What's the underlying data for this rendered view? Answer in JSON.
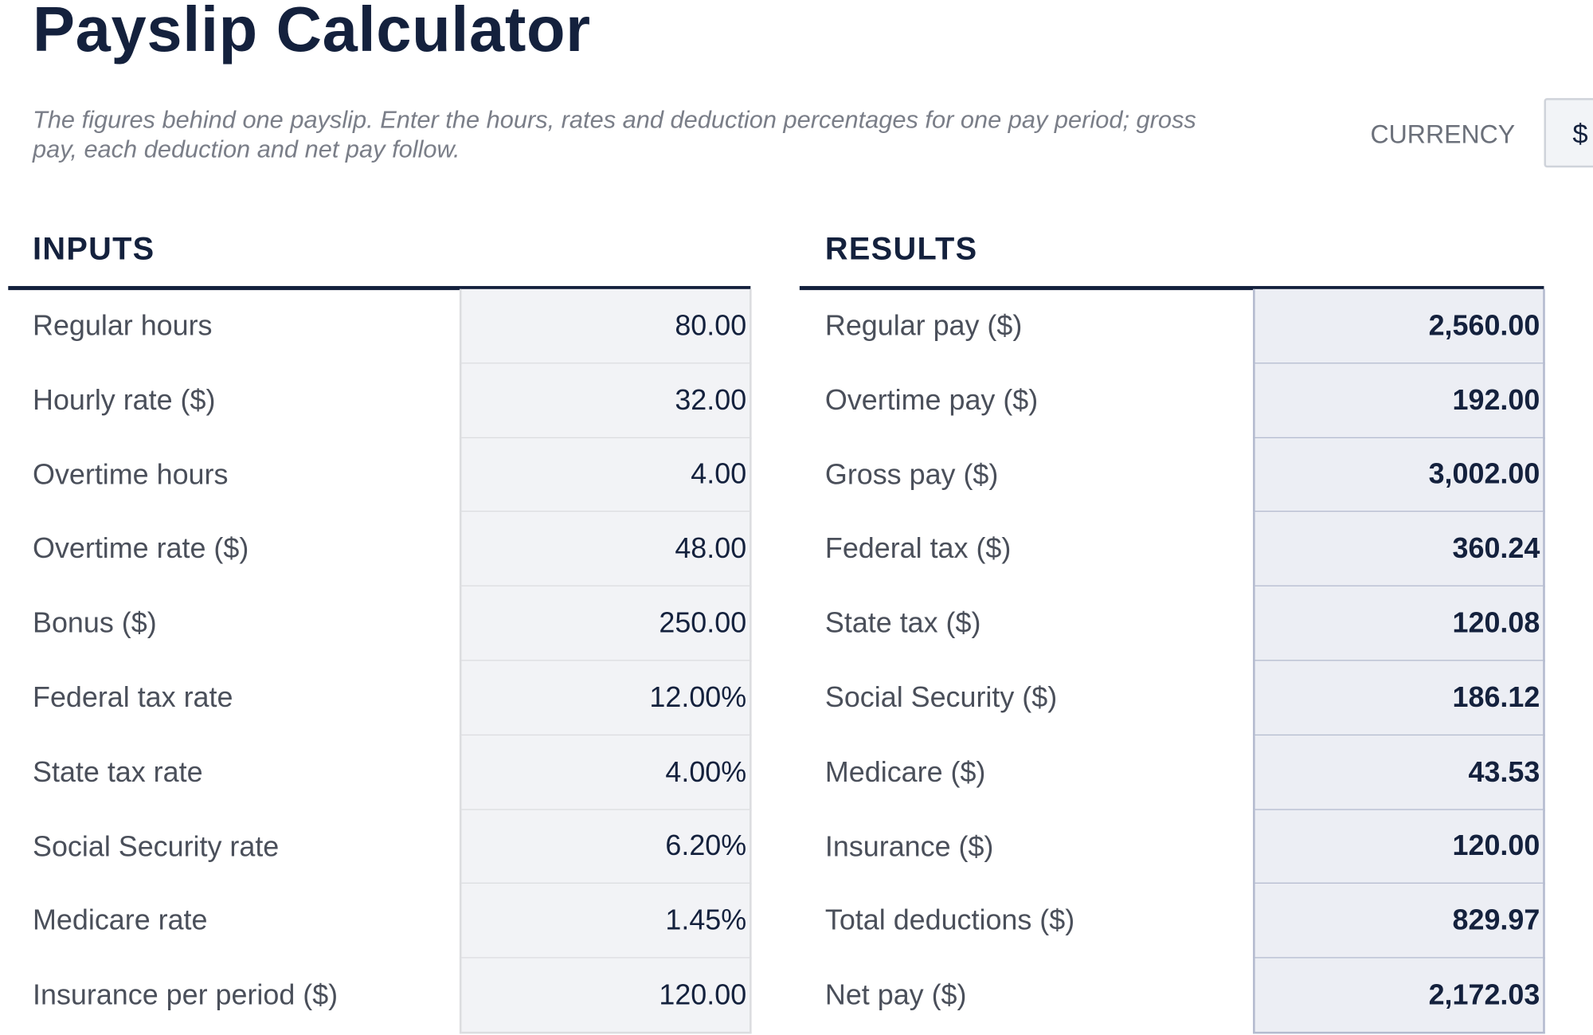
{
  "header": {
    "title": "Payslip Calculator",
    "subtitle": "The figures behind one payslip. Enter the hours, rates and deduction percentages for one pay period; gross pay, each deduction and net pay follow.",
    "currency_label": "CURRENCY",
    "currency_value": "$"
  },
  "inputs": {
    "heading": "INPUTS",
    "rows": [
      [
        "Regular hours",
        "80.00"
      ],
      [
        "Hourly rate ($)",
        "32.00"
      ],
      [
        "Overtime hours",
        "4.00"
      ],
      [
        "Overtime rate ($)",
        "48.00"
      ],
      [
        "Bonus ($)",
        "250.00"
      ],
      [
        "Federal tax rate",
        "12.00%"
      ],
      [
        "State tax rate",
        "4.00%"
      ],
      [
        "Social Security rate",
        "6.20%"
      ],
      [
        "Medicare rate",
        "1.45%"
      ],
      [
        "Insurance per period ($)",
        "120.00"
      ]
    ]
  },
  "results": {
    "heading": "RESULTS",
    "rows": [
      [
        "Regular pay ($)",
        "2,560.00"
      ],
      [
        "Overtime pay ($)",
        "192.00"
      ],
      [
        "Gross pay ($)",
        "3,002.00"
      ],
      [
        "Federal tax ($)",
        "360.24"
      ],
      [
        "State tax ($)",
        "120.08"
      ],
      [
        "Social Security ($)",
        "186.12"
      ],
      [
        "Medicare ($)",
        "43.53"
      ],
      [
        "Insurance ($)",
        "120.00"
      ],
      [
        "Total deductions ($)",
        "829.97"
      ],
      [
        "Net pay ($)",
        "2,172.03"
      ]
    ]
  }
}
